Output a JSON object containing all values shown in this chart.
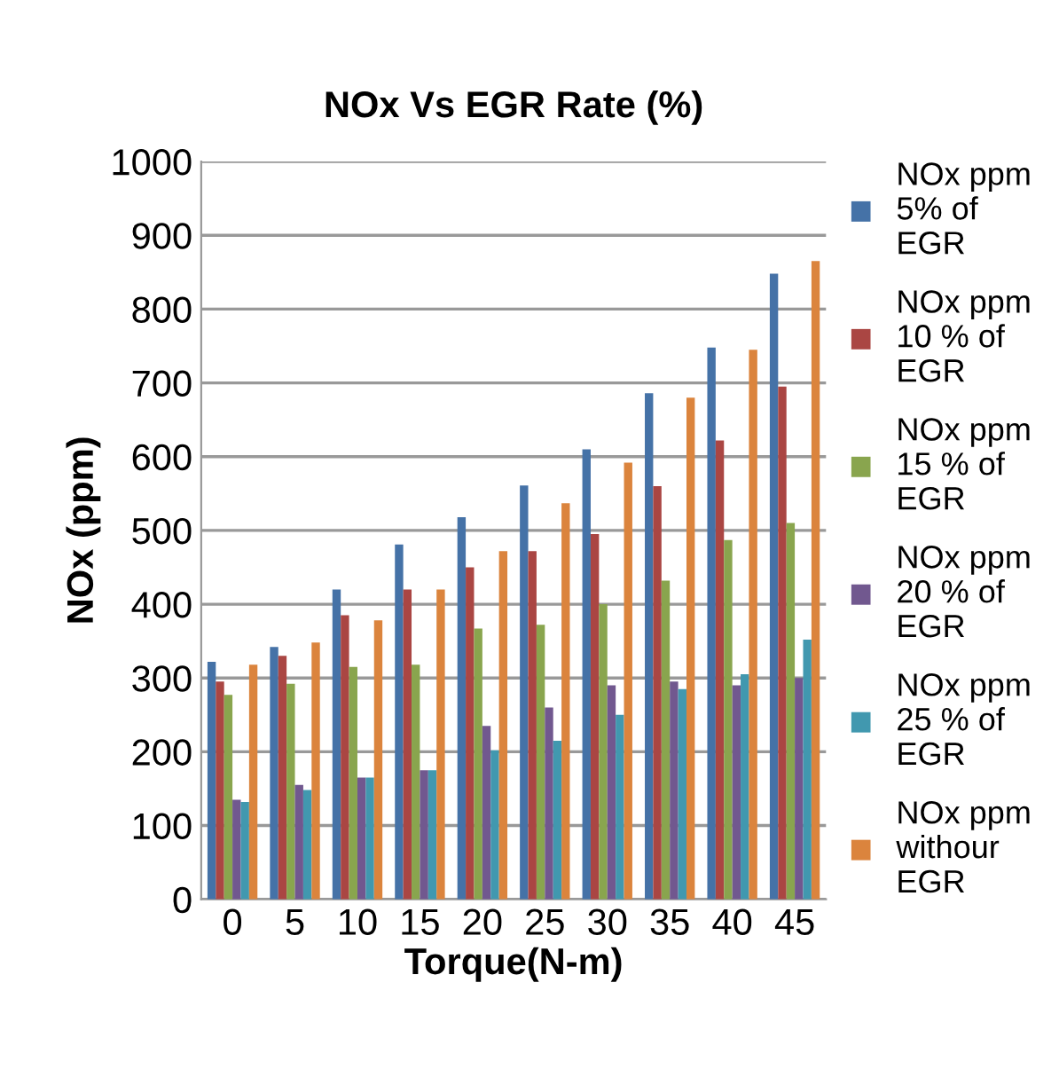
{
  "chart_data": {
    "type": "bar",
    "title": "NOx Vs EGR Rate (%)",
    "xlabel": "Torque(N-m)",
    "ylabel": "NOx (ppm)",
    "categories": [
      "0",
      "5",
      "10",
      "15",
      "20",
      "25",
      "30",
      "35",
      "40",
      "45"
    ],
    "series": [
      {
        "name": "NOx ppm\n5% of\nEGR",
        "color": "#4572a7",
        "values": [
          322,
          342,
          420,
          481,
          518,
          561,
          610,
          686,
          748,
          848
        ]
      },
      {
        "name": "NOx ppm\n10 % of\nEGR",
        "color": "#aa4643",
        "values": [
          295,
          330,
          385,
          420,
          450,
          472,
          495,
          560,
          622,
          695
        ]
      },
      {
        "name": "NOx ppm\n15 % of\nEGR",
        "color": "#89a54e",
        "values": [
          277,
          292,
          315,
          318,
          367,
          372,
          400,
          432,
          487,
          510
        ]
      },
      {
        "name": "NOx ppm\n20 % of\nEGR",
        "color": "#71588f",
        "values": [
          135,
          155,
          165,
          175,
          235,
          260,
          290,
          295,
          290,
          300
        ]
      },
      {
        "name": "NOx ppm\n25 % of\nEGR",
        "color": "#4198af",
        "values": [
          132,
          148,
          165,
          175,
          202,
          215,
          250,
          285,
          305,
          352
        ]
      },
      {
        "name": "NOx ppm\nwithour\nEGR",
        "color": "#db843d",
        "values": [
          318,
          348,
          378,
          420,
          472,
          537,
          592,
          680,
          745,
          865
        ]
      }
    ],
    "ylim": [
      0,
      1000
    ],
    "yticks": [
      0,
      100,
      200,
      300,
      400,
      500,
      600,
      700,
      800,
      900,
      1000
    ],
    "grid": "y",
    "legend": "right"
  }
}
